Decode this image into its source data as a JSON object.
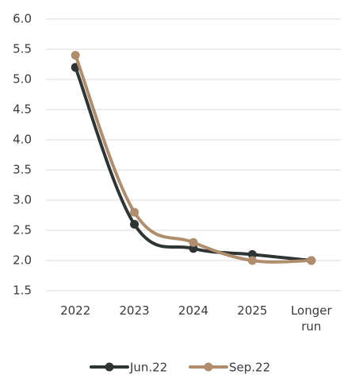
{
  "chart_data": {
    "type": "line",
    "categories": [
      "2022",
      "2023",
      "2024",
      "2025",
      "Longer run"
    ],
    "series": [
      {
        "name": "Jun.22",
        "color": "#2f3435",
        "values": [
          5.2,
          2.6,
          2.2,
          2.1,
          2.0
        ]
      },
      {
        "name": "Sep.22",
        "color": "#b08d6c",
        "values": [
          5.4,
          2.8,
          2.3,
          2.0,
          2.0
        ]
      }
    ],
    "ylim": [
      1.5,
      6.0
    ],
    "yticks": [
      1.5,
      {
        "value": 2,
        "label": "2.0"
      },
      2.5,
      {
        "value": 3,
        "label": "3.0"
      },
      3.5,
      {
        "value": 4,
        "label": "4.0"
      },
      4.5,
      {
        "value": 5,
        "label": "5.0"
      },
      5.5,
      {
        "value": 6,
        "label": "6.0"
      }
    ],
    "grid": true
  }
}
